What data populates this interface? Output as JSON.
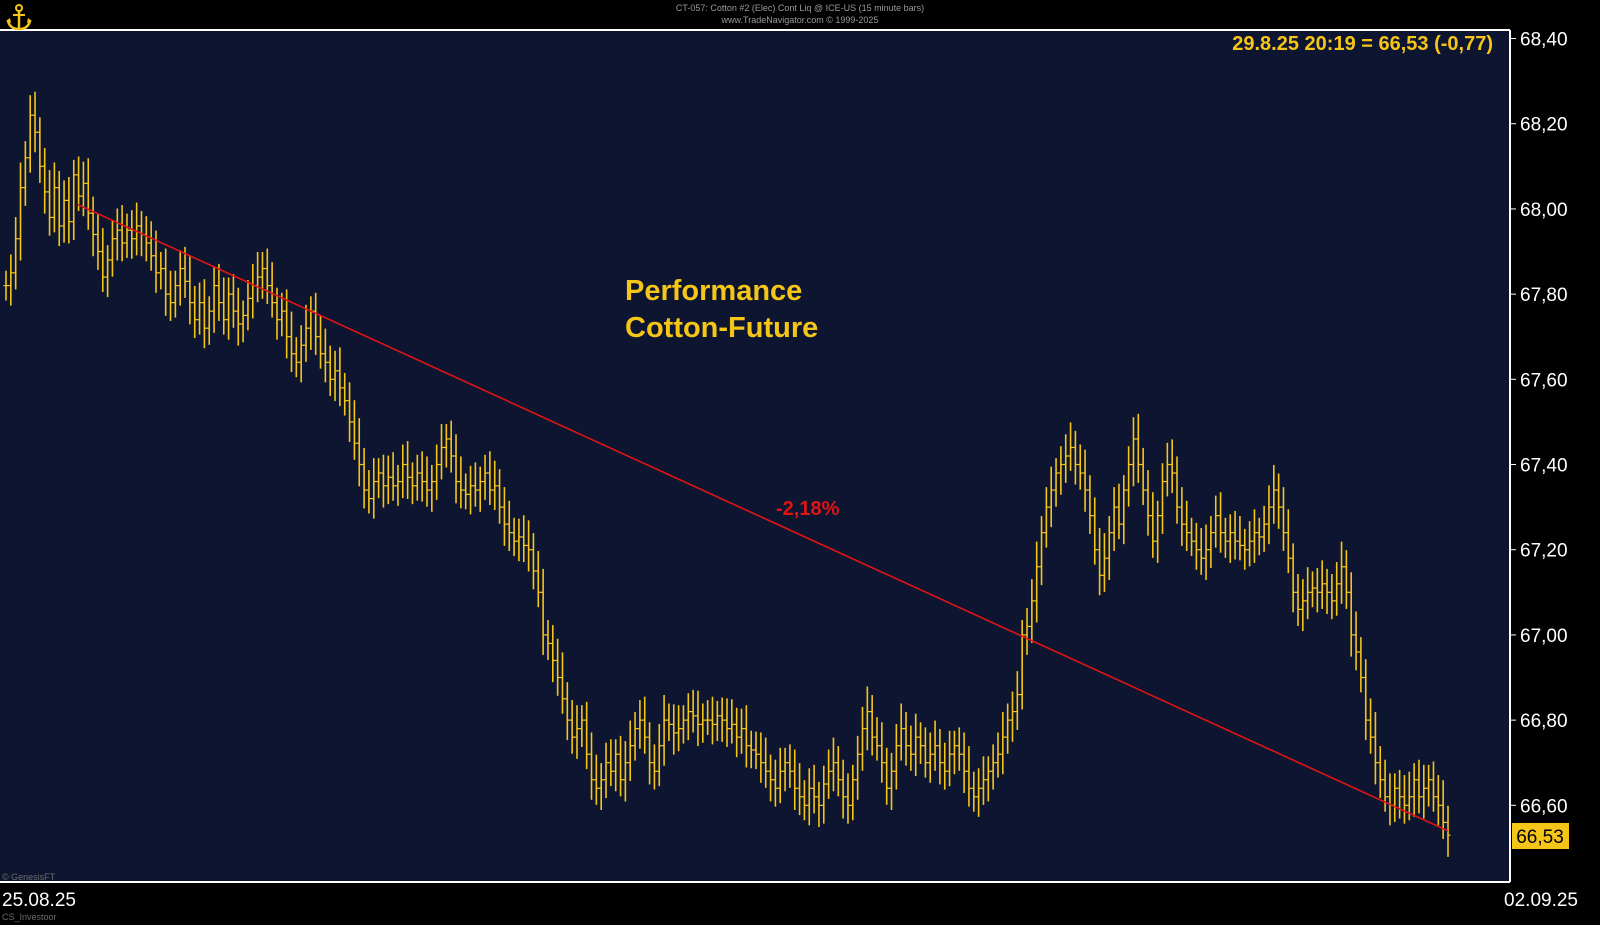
{
  "header": {
    "line1": "CT-057:  Cotton #2 (Elec) Cont Liq @ ICE-US  (15 minute bars)",
    "line2": "www.TradeNavigator.com © 1999-2025"
  },
  "footer": {
    "line1": "© GenesisFT",
    "line2": "CS_Investoor"
  },
  "colors": {
    "background": "#0d1530",
    "price": "#f5c518",
    "trendline": "#e01414",
    "frame": "#ffffff",
    "last_price_box": "#f5c518"
  },
  "chart_data": {
    "type": "line",
    "title": "Performance",
    "subtitle": "Cotton-Future",
    "readout": "29.8.25 20:19 = 66,53 (-0,77)",
    "last_price_label": "66,53",
    "change_label": "-2,18%",
    "x_labels": {
      "start": "25.08.25",
      "end": "02.09.25"
    },
    "ylim": [
      66.42,
      68.42
    ],
    "y_ticks": [
      "68,40",
      "68,20",
      "68,00",
      "67,80",
      "67,60",
      "67,40",
      "67,20",
      "67,00",
      "66,80",
      "66,60"
    ],
    "y_tick_values": [
      68.4,
      68.2,
      68.0,
      67.8,
      67.6,
      67.4,
      67.2,
      67.0,
      66.8,
      66.6
    ],
    "trendline": {
      "start_value": 68.01,
      "end_value": 66.54
    },
    "series": [
      {
        "values": [
          67.82,
          67.85,
          67.93,
          68.05,
          68.12,
          68.22,
          68.18,
          68.1,
          68.04,
          67.98,
          68.05,
          67.96,
          68.02,
          67.97,
          68.08,
          68.03,
          68.06,
          67.99,
          67.94,
          67.9,
          67.84,
          67.88,
          67.93,
          67.95,
          67.92,
          67.95,
          67.93,
          67.96,
          67.94,
          67.92,
          67.89,
          67.85,
          67.86,
          67.8,
          67.78,
          67.82,
          67.86,
          67.83,
          67.78,
          67.74,
          67.78,
          67.72,
          67.76,
          67.82,
          67.78,
          67.74,
          67.8,
          67.76,
          67.73,
          67.75,
          67.79,
          67.82,
          67.84,
          67.86,
          67.82,
          67.78,
          67.74,
          67.76,
          67.7,
          67.66,
          67.64,
          67.68,
          67.72,
          67.76,
          67.7,
          67.66,
          67.64,
          67.6,
          67.62,
          67.58,
          67.55,
          67.5,
          67.45,
          67.4,
          67.34,
          67.32,
          67.36,
          67.38,
          67.35,
          67.37,
          67.35,
          67.36,
          67.4,
          67.37,
          67.35,
          67.38,
          67.36,
          67.34,
          67.36,
          67.4,
          67.44,
          67.46,
          67.42,
          67.36,
          67.34,
          67.33,
          67.35,
          67.34,
          67.36,
          67.38,
          67.34,
          67.35,
          67.3,
          67.26,
          67.24,
          67.22,
          67.23,
          67.21,
          67.2,
          67.15,
          67.1,
          67.0,
          66.98,
          66.94,
          66.9,
          66.85,
          66.8,
          66.76,
          66.78,
          66.8,
          66.72,
          66.66,
          66.64,
          66.66,
          66.7,
          66.68,
          66.72,
          66.66,
          66.7,
          66.74,
          66.78,
          66.8,
          66.76,
          66.7,
          66.68,
          66.74,
          66.8,
          66.79,
          66.77,
          66.78,
          66.8,
          66.82,
          66.81,
          66.79,
          66.8,
          66.8,
          66.79,
          66.81,
          66.8,
          66.78,
          66.79,
          66.76,
          66.78,
          66.74,
          66.73,
          66.72,
          66.7,
          66.68,
          66.66,
          66.64,
          66.68,
          66.7,
          66.68,
          66.64,
          66.62,
          66.6,
          66.64,
          66.62,
          66.6,
          66.65,
          66.68,
          66.7,
          66.66,
          66.62,
          66.6,
          66.66,
          66.72,
          66.78,
          66.82,
          66.76,
          66.74,
          66.7,
          66.64,
          66.68,
          66.74,
          66.78,
          66.74,
          66.72,
          66.76,
          66.74,
          66.7,
          66.72,
          66.74,
          66.7,
          66.68,
          66.72,
          66.74,
          66.72,
          66.68,
          66.64,
          66.62,
          66.64,
          66.66,
          66.68,
          66.7,
          66.72,
          66.76,
          66.8,
          66.82,
          66.86,
          67.0,
          67.02,
          67.08,
          67.16,
          67.24,
          67.3,
          67.34,
          67.38,
          67.4,
          67.42,
          67.44,
          67.4,
          67.38,
          67.34,
          67.28,
          67.2,
          67.14,
          67.18,
          67.24,
          67.3,
          67.26,
          67.34,
          67.4,
          67.46,
          67.4,
          67.34,
          67.28,
          67.22,
          67.28,
          67.36,
          67.4,
          67.38,
          67.3,
          67.26,
          67.24,
          67.22,
          67.2,
          67.18,
          67.2,
          67.24,
          67.28,
          67.24,
          67.22,
          67.24,
          67.22,
          67.21,
          67.2,
          67.22,
          67.24,
          67.23,
          67.26,
          67.3,
          67.34,
          67.3,
          67.24,
          67.18,
          67.1,
          67.06,
          67.08,
          67.1,
          67.11,
          67.1,
          67.12,
          67.1,
          67.08,
          67.12,
          67.16,
          67.1,
          67.0,
          66.96,
          66.9,
          66.8,
          66.76,
          66.7,
          66.66,
          66.62,
          66.6,
          66.64,
          66.62,
          66.6,
          66.62,
          66.66,
          66.62,
          66.64,
          66.66,
          66.62,
          66.6,
          66.56,
          66.53
        ]
      }
    ]
  }
}
